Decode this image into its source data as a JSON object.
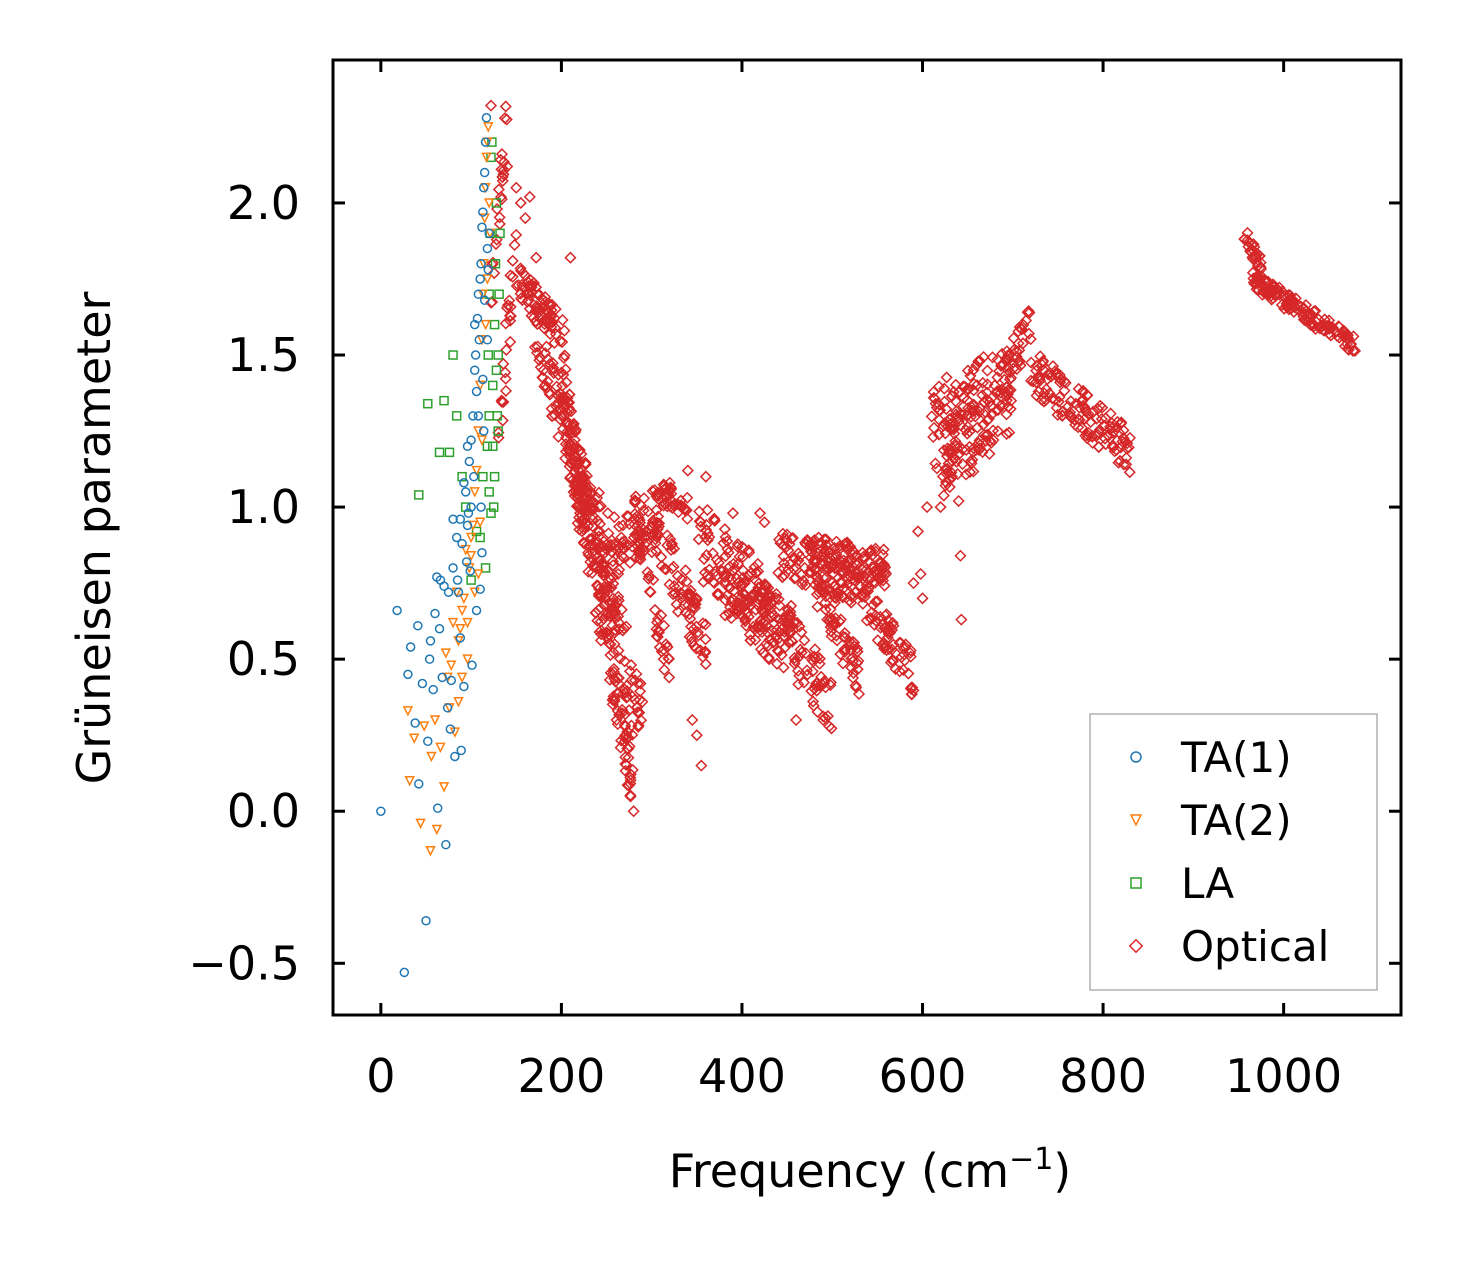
{
  "chart_data": {
    "type": "scatter",
    "title": "",
    "xlabel": "Frequency (cm",
    "xlabel_sup": "−1",
    "xlabel_end": ")",
    "ylabel": "Grüneisen parameter",
    "xlim": [
      -53,
      1130
    ],
    "ylim": [
      -0.67,
      2.47
    ],
    "xticks": [
      0,
      200,
      400,
      600,
      800,
      1000
    ],
    "xtick_labels": [
      "0",
      "200",
      "400",
      "600",
      "800",
      "1000"
    ],
    "yticks": [
      -0.5,
      0.0,
      0.5,
      1.0,
      1.5,
      2.0
    ],
    "ytick_labels": [
      "−0.5",
      "0.0",
      "0.5",
      "1.0",
      "1.5",
      "2.0"
    ],
    "legend_position": "lower-right",
    "series": [
      {
        "name": "TA(1)",
        "marker": "circle",
        "color": "#1f77b4",
        "points": [
          [
            0,
            0.0
          ],
          [
            18,
            0.66
          ],
          [
            26,
            -0.53
          ],
          [
            30,
            0.45
          ],
          [
            33,
            0.54
          ],
          [
            38,
            0.29
          ],
          [
            41,
            0.61
          ],
          [
            42,
            0.09
          ],
          [
            46,
            0.42
          ],
          [
            50,
            -0.36
          ],
          [
            52,
            0.23
          ],
          [
            54,
            0.5
          ],
          [
            55,
            0.56
          ],
          [
            58,
            0.4
          ],
          [
            60,
            0.65
          ],
          [
            62,
            0.77
          ],
          [
            63,
            0.01
          ],
          [
            65,
            0.6
          ],
          [
            66,
            0.76
          ],
          [
            68,
            0.44
          ],
          [
            70,
            0.74
          ],
          [
            72,
            -0.11
          ],
          [
            74,
            0.34
          ],
          [
            75,
            0.72
          ],
          [
            77,
            0.27
          ],
          [
            78,
            0.43
          ],
          [
            80,
            0.96
          ],
          [
            82,
            0.18
          ],
          [
            84,
            0.9
          ],
          [
            86,
            0.72
          ],
          [
            88,
            0.57
          ],
          [
            89,
            0.2
          ],
          [
            90,
            0.88
          ],
          [
            92,
            0.41
          ],
          [
            94,
            1.05
          ],
          [
            96,
            0.94
          ],
          [
            97,
            0.98
          ],
          [
            98,
            1.15
          ],
          [
            99,
            0.79
          ],
          [
            100,
            1.22
          ],
          [
            101,
            0.48
          ],
          [
            102,
            1.3
          ],
          [
            103,
            1.1
          ],
          [
            104,
            1.45
          ],
          [
            105,
            1.5
          ],
          [
            106,
            1.38
          ],
          [
            107,
            1.62
          ],
          [
            108,
            1.7
          ],
          [
            109,
            1.55
          ],
          [
            110,
            1.75
          ],
          [
            111,
            1.8
          ],
          [
            112,
            1.92
          ],
          [
            113,
            1.97
          ],
          [
            114,
            2.05
          ],
          [
            115,
            2.1
          ],
          [
            116,
            2.2
          ],
          [
            117,
            2.28
          ],
          [
            118,
            1.85
          ],
          [
            106,
            0.66
          ],
          [
            110,
            0.73
          ],
          [
            112,
            0.85
          ],
          [
            100,
            1.0
          ],
          [
            96,
            1.2
          ],
          [
            92,
            1.08
          ],
          [
            108,
            1.3
          ],
          [
            104,
            1.6
          ],
          [
            113,
            1.42
          ],
          [
            115,
            1.68
          ],
          [
            119,
            1.78
          ],
          [
            120,
            1.9
          ],
          [
            118,
            1.55
          ],
          [
            114,
            1.25
          ],
          [
            111,
            1.0
          ],
          [
            95,
            0.82
          ],
          [
            88,
            0.96
          ],
          [
            85,
            0.76
          ],
          [
            80,
            0.8
          ]
        ]
      },
      {
        "name": "TA(2)",
        "marker": "triangle-down",
        "color": "#ff7f0e",
        "points": [
          [
            30,
            0.33
          ],
          [
            32,
            0.1
          ],
          [
            37,
            0.24
          ],
          [
            44,
            -0.04
          ],
          [
            48,
            0.28
          ],
          [
            55,
            -0.13
          ],
          [
            56,
            0.18
          ],
          [
            60,
            0.3
          ],
          [
            62,
            -0.06
          ],
          [
            66,
            0.21
          ],
          [
            70,
            0.08
          ],
          [
            72,
            0.52
          ],
          [
            74,
            0.44
          ],
          [
            76,
            0.34
          ],
          [
            78,
            0.48
          ],
          [
            80,
            0.62
          ],
          [
            82,
            0.26
          ],
          [
            84,
            0.72
          ],
          [
            86,
            0.56
          ],
          [
            88,
            0.6
          ],
          [
            90,
            0.66
          ],
          [
            92,
            0.7
          ],
          [
            94,
            0.86
          ],
          [
            96,
            0.5
          ],
          [
            98,
            0.8
          ],
          [
            100,
            0.9
          ],
          [
            102,
            0.94
          ],
          [
            104,
            1.05
          ],
          [
            106,
            1.12
          ],
          [
            108,
            1.25
          ],
          [
            110,
            1.4
          ],
          [
            112,
            1.55
          ],
          [
            113,
            1.7
          ],
          [
            114,
            1.8
          ],
          [
            115,
            1.95
          ],
          [
            116,
            2.05
          ],
          [
            117,
            2.15
          ],
          [
            118,
            2.2
          ],
          [
            119,
            2.25
          ],
          [
            120,
            2.0
          ],
          [
            112,
            1.22
          ],
          [
            108,
            0.78
          ],
          [
            104,
            0.72
          ],
          [
            110,
            0.95
          ],
          [
            116,
            1.6
          ],
          [
            118,
            1.75
          ],
          [
            121,
            1.9
          ],
          [
            100,
            0.84
          ],
          [
            96,
            0.62
          ],
          [
            86,
            0.36
          ],
          [
            90,
            0.44
          ]
        ]
      },
      {
        "name": "LA",
        "marker": "square",
        "color": "#2ca02c",
        "points": [
          [
            42,
            1.04
          ],
          [
            52,
            1.34
          ],
          [
            65,
            1.18
          ],
          [
            70,
            1.35
          ],
          [
            76,
            1.18
          ],
          [
            80,
            1.5
          ],
          [
            84,
            1.3
          ],
          [
            90,
            1.1
          ],
          [
            94,
            1.0
          ],
          [
            100,
            0.76
          ],
          [
            106,
            0.92
          ],
          [
            110,
            0.9
          ],
          [
            113,
            1.1
          ],
          [
            116,
            0.8
          ],
          [
            118,
            1.2
          ],
          [
            119,
            1.5
          ],
          [
            120,
            1.7
          ],
          [
            121,
            1.9
          ],
          [
            122,
            2.15
          ],
          [
            123,
            2.2
          ],
          [
            124,
            1.4
          ],
          [
            125,
            1.0
          ],
          [
            126,
            1.6
          ],
          [
            127,
            1.8
          ],
          [
            128,
            2.0
          ],
          [
            129,
            1.3
          ],
          [
            130,
            1.5
          ],
          [
            131,
            1.7
          ],
          [
            132,
            1.9
          ],
          [
            120,
            1.3
          ],
          [
            124,
            1.2
          ],
          [
            126,
            1.1
          ],
          [
            128,
            1.45
          ],
          [
            122,
            0.98
          ],
          [
            120,
            1.05
          ],
          [
            130,
            1.25
          ]
        ]
      },
      {
        "name": "Optical",
        "marker": "diamond",
        "color": "#d62728",
        "bands": [
          {
            "x": [
              120,
              140
            ],
            "y": [
              1.6,
              2.3
            ],
            "w": 0.2
          },
          {
            "x": [
              130,
              150
            ],
            "y": [
              1.2,
              1.9
            ],
            "w": 0.25
          },
          {
            "x": [
              150,
              205
            ],
            "y": [
              1.75,
              1.55
            ],
            "w": 0.12
          },
          {
            "x": [
              170,
              230
            ],
            "y": [
              1.6,
              0.95
            ],
            "w": 0.18
          },
          {
            "x": [
              190,
              280
            ],
            "y": [
              1.5,
              0.05
            ],
            "w": 0.15
          },
          {
            "x": [
              200,
              280
            ],
            "y": [
              1.45,
              0.2
            ],
            "w": 0.2
          },
          {
            "x": [
              210,
              290
            ],
            "y": [
              1.25,
              0.3
            ],
            "w": 0.2
          },
          {
            "x": [
              215,
              260
            ],
            "y": [
              1.05,
              0.85
            ],
            "w": 0.25
          },
          {
            "x": [
              260,
              310
            ],
            "y": [
              0.85,
              1.0
            ],
            "w": 0.18
          },
          {
            "x": [
              280,
              320
            ],
            "y": [
              1.0,
              0.45
            ],
            "w": 0.15
          },
          {
            "x": [
              300,
              360
            ],
            "y": [
              0.95,
              0.55
            ],
            "w": 0.2
          },
          {
            "x": [
              310,
              340
            ],
            "y": [
              1.05,
              1.0
            ],
            "w": 0.08
          },
          {
            "x": [
              350,
              420
            ],
            "y": [
              0.9,
              0.7
            ],
            "w": 0.25
          },
          {
            "x": [
              380,
              460
            ],
            "y": [
              0.75,
              0.55
            ],
            "w": 0.25
          },
          {
            "x": [
              420,
              500
            ],
            "y": [
              0.7,
              0.35
            ],
            "w": 0.2
          },
          {
            "x": [
              440,
              520
            ],
            "y": [
              0.85,
              0.75
            ],
            "w": 0.15
          },
          {
            "x": [
              470,
              560
            ],
            "y": [
              0.85,
              0.8
            ],
            "w": 0.12
          },
          {
            "x": [
              480,
              530
            ],
            "y": [
              0.75,
              0.45
            ],
            "w": 0.15
          },
          {
            "x": [
              520,
              590
            ],
            "y": [
              0.75,
              0.45
            ],
            "w": 0.15
          },
          {
            "x": [
              610,
              700
            ],
            "y": [
              1.25,
              1.4
            ],
            "w": 0.3
          },
          {
            "x": [
              620,
              680
            ],
            "y": [
              1.15,
              1.3
            ],
            "w": 0.25
          },
          {
            "x": [
              680,
              720
            ],
            "y": [
              1.35,
              1.6
            ],
            "w": 0.15
          },
          {
            "x": [
              720,
              830
            ],
            "y": [
              1.45,
              1.18
            ],
            "w": 0.15
          },
          {
            "x": [
              955,
              975
            ],
            "y": [
              1.9,
              1.8
            ],
            "w": 0.06
          },
          {
            "x": [
              965,
              1080
            ],
            "y": [
              1.75,
              1.53
            ],
            "w": 0.06
          }
        ],
        "points": [
          [
            122,
            2.32
          ],
          [
            140,
            2.12
          ],
          [
            150,
            2.05
          ],
          [
            155,
            2.0
          ],
          [
            160,
            1.95
          ],
          [
            165,
            2.02
          ],
          [
            172,
            1.82
          ],
          [
            175,
            1.7
          ],
          [
            210,
            1.82
          ],
          [
            180,
            1.45
          ],
          [
            190,
            1.3
          ],
          [
            420,
            0.98
          ],
          [
            425,
            0.95
          ],
          [
            595,
            0.92
          ],
          [
            598,
            0.78
          ],
          [
            605,
            1.0
          ],
          [
            620,
            1.0
          ],
          [
            640,
            1.02
          ],
          [
            642,
            0.84
          ],
          [
            643,
            0.63
          ],
          [
            600,
            0.7
          ],
          [
            590,
            0.75
          ],
          [
            355,
            0.15
          ],
          [
            350,
            0.25
          ],
          [
            345,
            0.3
          ],
          [
            280,
            0.0
          ],
          [
            360,
            1.1
          ],
          [
            340,
            1.12
          ],
          [
            320,
            1.08
          ],
          [
            390,
            0.98
          ],
          [
            430,
            0.5
          ],
          [
            460,
            0.3
          ],
          [
            490,
            0.3
          ],
          [
            570,
            0.52
          ]
        ]
      }
    ]
  }
}
